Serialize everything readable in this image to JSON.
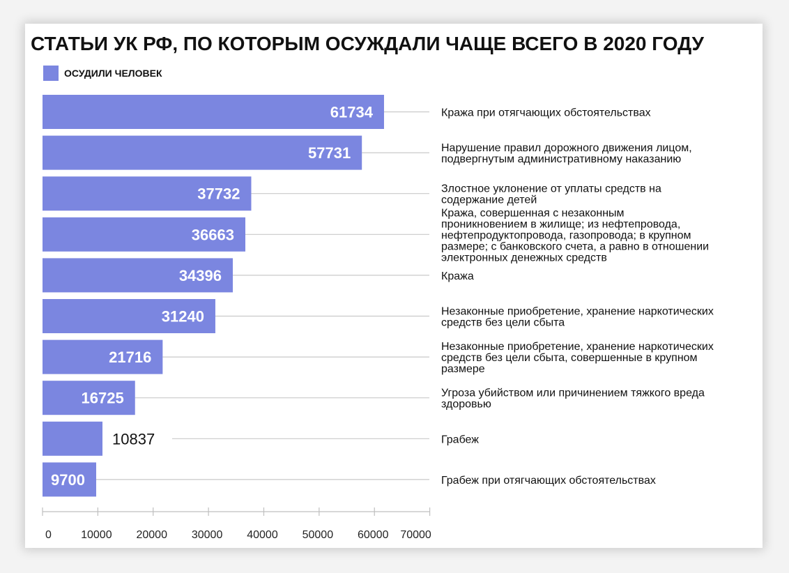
{
  "chart_data": {
    "type": "bar",
    "orientation": "horizontal",
    "title": "СТАТЬИ УК РФ, ПО КОТОРЫМ ОСУЖДАЛИ ЧАЩЕ ВСЕГО В 2020 ГОДУ",
    "xlim": [
      0,
      70000
    ],
    "xticks": [
      "0",
      "10000",
      "20000",
      "30000",
      "40000",
      "50000",
      "60000",
      "70000"
    ],
    "legend_position": "top-left",
    "grid": false,
    "series": [
      {
        "name": "ОСУДИЛИ ЧЕЛОВЕК",
        "color": "#7b86e0",
        "values": [
          61734,
          57731,
          37732,
          36663,
          34396,
          31240,
          21716,
          16725,
          10837,
          9700
        ]
      }
    ],
    "categories": [
      "Кража при отягчающих обстоятельствах",
      "Нарушение правил дорожного движения лицом, подвергнутым административному наказанию",
      "Злостное уклонение от уплаты средств на содержание детей",
      "Кража, совершенная с незаконным проникновением в жилище; из нефтепровода, нефтепродуктопровода, газопровода; в крупном размере; с банковского счета, а равно в отношении электронных денежных средств",
      "Кража",
      "Незаконные приобретение, хранение наркотических средств без цели сбыта",
      "Незаконные приобретение, хранение наркотических средств без цели сбыта, совершенные в крупном размере",
      "Угроза убийством или причинением тяжкого вреда здоровью",
      "Грабеж",
      "Грабеж при отягчающих обстоятельствах"
    ],
    "category_lines": [
      [
        "Кража при отягчающих обстоятельствах"
      ],
      [
        "Нарушение правил дорожного движения лицом,",
        "подвергнутым административному наказанию"
      ],
      [
        "Злостное уклонение от уплаты средств на",
        "содержание детей"
      ],
      [
        "Кража, совершенная с незаконным",
        "проникновением в жилище; из нефтепровода,",
        "нефтепродуктопровода, газопровода; в крупном",
        "размере; с банковского счета, а равно в отношении",
        "электронных денежных средств"
      ],
      [
        "Кража"
      ],
      [
        "Незаконные приобретение, хранение наркотических",
        "средств без цели сбыта"
      ],
      [
        "Незаконные приобретение, хранение наркотических",
        "средств без цели сбыта, совершенные в крупном",
        "размере"
      ],
      [
        "Угроза убийством или причинением тяжкого вреда",
        "здоровью"
      ],
      [
        "Грабеж"
      ],
      [
        "Грабеж при отягчающих обстоятельствах"
      ]
    ],
    "labels_inside_bar": [
      true,
      true,
      true,
      true,
      true,
      true,
      true,
      true,
      false,
      true
    ]
  }
}
